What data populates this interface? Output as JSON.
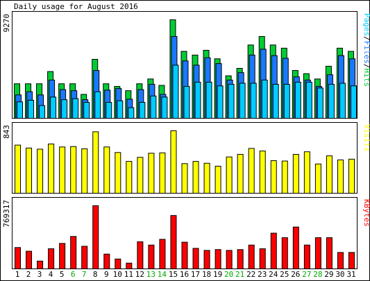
{
  "chart_data": {
    "type": "bar",
    "title": "Daily usage for August 2016",
    "days": [
      "1",
      "2",
      "3",
      "4",
      "5",
      "6",
      "7",
      "8",
      "9",
      "10",
      "11",
      "12",
      "13",
      "14",
      "15",
      "16",
      "17",
      "18",
      "19",
      "20",
      "21",
      "22",
      "23",
      "24",
      "25",
      "26",
      "27",
      "28",
      "29",
      "30",
      "31"
    ],
    "weekend_days": [
      "6",
      "7",
      "13",
      "14",
      "20",
      "21",
      "27",
      "28"
    ],
    "panels": [
      {
        "id": "hits",
        "ymax_label": "9270",
        "ymax": 9270,
        "legend": [
          "Pages",
          "/",
          "Files",
          "/",
          "Hits"
        ],
        "series": [
          {
            "name": "Hits",
            "color": "#00cc33",
            "values": [
              3250,
              3250,
              3250,
              4400,
              3250,
              3250,
              2250,
              5550,
              3250,
              3000,
              2600,
              3250,
              3700,
              3100,
              9270,
              6300,
              5950,
              6400,
              5600,
              4000,
              4700,
              6900,
              7700,
              6900,
              6600,
              4500,
              4200,
              3700,
              4900,
              6600,
              6300
            ]
          },
          {
            "name": "Files",
            "color": "#1a78ff",
            "values": [
              2200,
              2500,
              2200,
              3600,
              2700,
              2600,
              1750,
              4500,
              2650,
              2800,
              1800,
              2700,
              3200,
              2250,
              7700,
              5400,
              5000,
              5700,
              5150,
              3600,
              4300,
              5950,
              6500,
              5900,
              5650,
              3900,
              3600,
              3000,
              4100,
              5900,
              5600
            ]
          },
          {
            "name": "Pages",
            "color": "#00ccff",
            "values": [
              1550,
              1700,
              1200,
              2000,
              1750,
              1850,
              1500,
              2500,
              1500,
              1650,
              1000,
              1500,
              2100,
              2000,
              5000,
              3000,
              3400,
              3400,
              3050,
              3200,
              3300,
              3300,
              3600,
              3200,
              3200,
              3400,
              3400,
              2850,
              3200,
              3300,
              3050
            ]
          }
        ]
      },
      {
        "id": "visits",
        "ymax_label": "843",
        "ymax": 843,
        "legend": [
          "Visits"
        ],
        "series": [
          {
            "name": "Visits",
            "color": "#ffff00",
            "values": [
              650,
              610,
              595,
              665,
              625,
              630,
              600,
              830,
              625,
              550,
              430,
              485,
              540,
              545,
              843,
              400,
              430,
              405,
              365,
              490,
              525,
              605,
              570,
              440,
              435,
              525,
              560,
              395,
              505,
              450,
              460
            ]
          }
        ]
      },
      {
        "id": "kbytes",
        "ymax_label": "769317",
        "ymax": 769317,
        "legend": [
          "KBytes"
        ],
        "series": [
          {
            "name": "KBytes",
            "color": "#ff0000",
            "values": [
              260000,
              215000,
              95000,
              245000,
              310000,
              395000,
              275000,
              769317,
              180000,
              120000,
              70000,
              330000,
              290000,
              360000,
              650000,
              325000,
              250000,
              225000,
              235000,
              225000,
              235000,
              290000,
              245000,
              435000,
              380000,
              510000,
              290000,
              380000,
              380000,
              200000,
              200000
            ]
          }
        ]
      }
    ],
    "colors": {
      "background": "#ffffff",
      "frame": "#000000",
      "bar_outline": "#000000",
      "weekday_label": "#000000",
      "weekend_label": "#00aa00"
    }
  }
}
